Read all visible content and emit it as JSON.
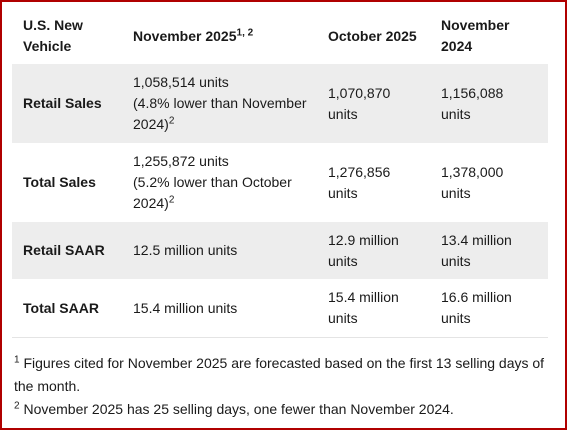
{
  "table": {
    "headers": {
      "vehicle": [
        "U.S. New",
        "Vehicle"
      ],
      "nov2025": "November 2025",
      "nov2025_sup": "1, 2",
      "oct2025": "October 2025",
      "nov2024": [
        "November",
        "2024"
      ]
    },
    "rows": [
      {
        "label": "Retail Sales",
        "nov2025": [
          "1,058,514 units",
          "(4.8% lower than November",
          "2024)"
        ],
        "nov2025_sup": "2",
        "oct2025": [
          "1,070,870",
          "units"
        ],
        "nov2024": [
          "1,156,088",
          "units"
        ]
      },
      {
        "label": "Total Sales",
        "nov2025": [
          "1,255,872 units",
          "(5.2% lower than October",
          "2024)"
        ],
        "nov2025_sup": "2",
        "oct2025": [
          "1,276,856",
          "units"
        ],
        "nov2024": [
          "1,378,000",
          "units"
        ]
      },
      {
        "label": "Retail SAAR",
        "nov2025": [
          "12.5 million units"
        ],
        "oct2025": [
          "12.9 million",
          "units"
        ],
        "nov2024": [
          "13.4 million",
          "units"
        ]
      },
      {
        "label": "Total SAAR",
        "nov2025": [
          "15.4 million units"
        ],
        "oct2025": [
          "15.4 million",
          "units"
        ],
        "nov2024": [
          "16.6 million",
          "units"
        ]
      }
    ]
  },
  "footnotes": [
    {
      "mark": "1",
      "text": "Figures cited for November 2025 are forecasted based on the first 13 selling days of the month."
    },
    {
      "mark": "2",
      "text": "November 2025 has 25 selling days, one fewer than November 2024."
    }
  ]
}
